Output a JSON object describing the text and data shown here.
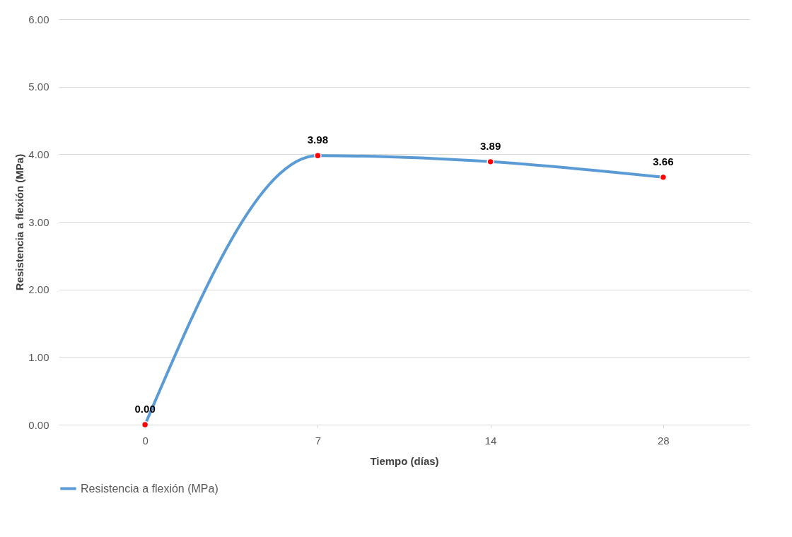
{
  "chart_data": {
    "type": "line",
    "xlabel": "Tiempo (días)",
    "ylabel": "Resistencia a flexión (MPa)",
    "categories": [
      "0",
      "7",
      "14",
      "28"
    ],
    "series": [
      {
        "name": "Resistencia a flexión (MPa)",
        "color": "#5b9bd5",
        "values": [
          0.0,
          3.98,
          3.89,
          3.66
        ],
        "value_labels": [
          "0.00",
          "3.98",
          "3.89",
          "3.66"
        ]
      }
    ],
    "ylim": [
      0,
      6
    ],
    "yticks": [
      {
        "value": 0,
        "label": "0.00"
      },
      {
        "value": 1,
        "label": "1.00"
      },
      {
        "value": 2,
        "label": "2.00"
      },
      {
        "value": 3,
        "label": "3.00"
      },
      {
        "value": 4,
        "label": "4.00"
      },
      {
        "value": 5,
        "label": "5.00"
      },
      {
        "value": 6,
        "label": "6.00"
      }
    ],
    "grid": "y",
    "legend": "bottom",
    "marker": "circle",
    "line_style": "solid"
  }
}
